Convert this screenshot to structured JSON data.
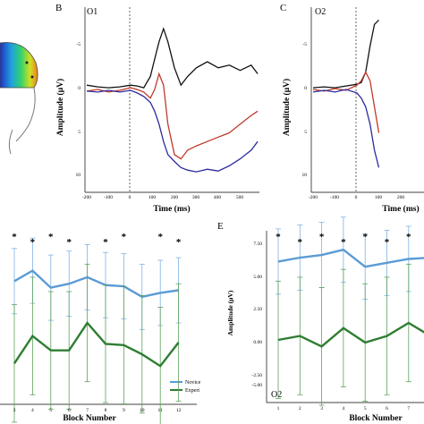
{
  "panels": {
    "B": {
      "letter": "B",
      "channel": "O1"
    },
    "C": {
      "letter": "C",
      "channel": "O2"
    },
    "E": {
      "letter": "E",
      "channel": "O2"
    }
  },
  "erp_axes": {
    "ylabel": "Amplitude (μV)",
    "xlabel": "Time (ms)",
    "y_ticks": [
      "-5",
      "0",
      "5",
      "10"
    ],
    "x_ticks": [
      "-200",
      "-100",
      "0",
      "100",
      "200",
      "300",
      "400",
      "500"
    ]
  },
  "block_axes": {
    "ylabel": "Amplitude (μV)",
    "xlabel": "Block Number",
    "y_ticks_E": [
      "7.50",
      "5.00",
      "2.50",
      "0.00",
      "-2.50",
      "-5.00"
    ],
    "x_ticks_E": [
      "1",
      "2",
      "3",
      "4",
      "5",
      "6",
      "7",
      "8"
    ],
    "x_ticks_D": [
      "3",
      "4",
      "5",
      "6",
      "7",
      "8",
      "9",
      "10",
      "11",
      "12"
    ],
    "legend": [
      {
        "name": "Novice",
        "color": "#5b9bd5"
      },
      {
        "name": "Expert",
        "color": "#2e7d32"
      }
    ],
    "star": "*"
  },
  "colors": {
    "black_wave": "#111111",
    "red_wave": "#c0392b",
    "blue_wave": "#2b2b9e",
    "novice": "#5b9bd5",
    "expert": "#2e7d32",
    "novice_err": "#7fb2e5",
    "expert_err": "#5aa35a"
  },
  "chart_data": [
    {
      "type": "line",
      "panel": "B",
      "title": "O1",
      "xlabel": "Time (ms)",
      "ylabel": "Amplitude (μV)",
      "xlim": [
        -200,
        580
      ],
      "ylim": [
        -10,
        10
      ],
      "y_inverted": true,
      "series": [
        {
          "color": "black",
          "x": [
            -200,
            -150,
            -100,
            -50,
            0,
            30,
            60,
            90,
            110,
            130,
            150,
            170,
            200,
            230,
            260,
            300,
            350,
            400,
            450,
            500,
            550,
            580
          ],
          "y": [
            -0.5,
            -0.3,
            -0.2,
            -0.3,
            -0.5,
            -0.4,
            -0.2,
            -1.5,
            -3.5,
            -5.5,
            -7,
            -5.5,
            -2.5,
            -0.5,
            -1.5,
            -2.5,
            -3.2,
            -2.5,
            -2.8,
            -2.2,
            -2.8,
            -1.8
          ]
        },
        {
          "color": "red",
          "x": [
            -200,
            -150,
            -100,
            -50,
            0,
            30,
            60,
            90,
            110,
            130,
            150,
            170,
            200,
            230,
            260,
            300,
            350,
            400,
            450,
            500,
            550,
            580
          ],
          "y": [
            0.2,
            0,
            0.3,
            0.1,
            -0.2,
            0,
            0.3,
            1,
            0,
            -1.8,
            -0.5,
            4,
            7.5,
            8,
            7,
            6.5,
            6,
            5.5,
            5,
            4,
            3,
            2.5
          ]
        },
        {
          "color": "blue",
          "x": [
            -200,
            -150,
            -100,
            -50,
            0,
            30,
            60,
            90,
            110,
            130,
            150,
            170,
            200,
            230,
            260,
            300,
            350,
            400,
            450,
            500,
            550,
            580
          ],
          "y": [
            0.2,
            0.3,
            0.1,
            0.3,
            0.1,
            0.4,
            0.8,
            1.5,
            2.5,
            4,
            6,
            7.5,
            8.3,
            9,
            9.3,
            9.5,
            9.2,
            9.4,
            8.8,
            8,
            7,
            6
          ]
        }
      ]
    },
    {
      "type": "line",
      "panel": "C",
      "title": "O2",
      "xlabel": "Time (ms)",
      "ylabel": "Amplitude (μV)",
      "xlim": [
        -200,
        100
      ],
      "ylim": [
        -10,
        10
      ],
      "y_inverted": true,
      "series": [
        {
          "color": "black",
          "x": [
            -200,
            -150,
            -100,
            -50,
            0,
            20,
            40,
            60,
            80,
            100
          ],
          "y": [
            -0.2,
            -0.3,
            -0.2,
            -0.4,
            -0.6,
            -0.8,
            -2,
            -5,
            -7.5,
            -8
          ]
        },
        {
          "color": "red",
          "x": [
            -200,
            -150,
            -100,
            -50,
            0,
            20,
            40,
            60,
            80,
            100
          ],
          "y": [
            0,
            0.2,
            -0.1,
            0.1,
            -0.5,
            -1,
            -2,
            -1,
            2,
            5
          ]
        },
        {
          "color": "blue",
          "x": [
            -200,
            -150,
            -100,
            -50,
            0,
            20,
            40,
            60,
            80,
            100
          ],
          "y": [
            0.3,
            0.1,
            0.3,
            0,
            0.4,
            1,
            2,
            4,
            7,
            9
          ]
        }
      ]
    },
    {
      "type": "line",
      "panel": "D",
      "xlabel": "Block Number",
      "categories": [
        "3",
        "4",
        "5",
        "6",
        "7",
        "8",
        "9",
        "10",
        "11",
        "12"
      ],
      "series": [
        {
          "name": "Novice",
          "values": [
            4.5,
            5.3,
            4.0,
            4.3,
            4.8,
            4.2,
            4.1,
            3.3,
            3.6,
            3.8
          ],
          "error": 2.5
        },
        {
          "name": "Expert",
          "values": [
            -1.8,
            0.3,
            -0.8,
            -0.8,
            1.3,
            -0.3,
            -0.4,
            -1.1,
            -2.0,
            -0.2
          ],
          "error": 4.5
        }
      ],
      "ylim": [
        -5.5,
        8.5
      ],
      "significant_marks": [
        "3",
        "4",
        "5",
        "6",
        "8",
        "9",
        "11",
        "12"
      ]
    },
    {
      "type": "line",
      "panel": "E",
      "title": "O2",
      "xlabel": "Block Number",
      "ylabel": "Amplitude (μV)",
      "categories": [
        "1",
        "2",
        "3",
        "4",
        "5",
        "6",
        "7",
        "8"
      ],
      "series": [
        {
          "name": "Novice",
          "values": [
            4.7,
            5.0,
            5.2,
            5.6,
            4.3,
            4.6,
            4.9,
            5.0
          ],
          "error": 2.5
        },
        {
          "name": "Expert",
          "values": [
            -1.3,
            -1.0,
            -1.8,
            -0.4,
            -1.5,
            -1.0,
            0.0,
            -1.0
          ],
          "error": 4.5
        }
      ],
      "ylim": [
        -5.5,
        8.5
      ],
      "significant_marks": [
        "1",
        "2",
        "3",
        "4",
        "5",
        "6",
        "7",
        "8"
      ]
    }
  ]
}
